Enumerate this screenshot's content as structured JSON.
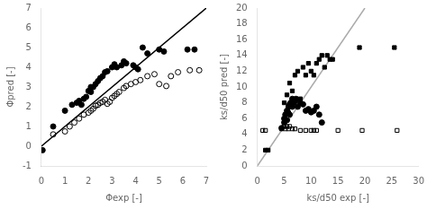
{
  "chart_data": [
    {
      "type": "scatter",
      "xlabel": "Φexp [-]",
      "ylabel": "Φpred [-]",
      "xlim": [
        0,
        7
      ],
      "ylim": [
        -1,
        7
      ],
      "xticks": [
        0,
        1,
        2,
        3,
        4,
        5,
        6,
        7
      ],
      "yticks": [
        -1,
        0,
        1,
        2,
        3,
        4,
        5,
        6,
        7
      ],
      "grid": false,
      "series": [
        {
          "type": "line",
          "color": "#000000",
          "x": [
            0,
            7
          ],
          "values": [
            0,
            7
          ]
        },
        {
          "type": "scatter",
          "marker": "circle",
          "color": "#000000",
          "x": [
            0.05,
            0.5,
            1.0,
            1.3,
            1.5,
            1.6,
            1.7,
            1.8,
            1.9,
            2.0,
            2.1,
            2.1,
            2.2,
            2.3,
            2.4,
            2.5,
            2.6,
            2.7,
            2.8,
            3.0,
            3.1,
            3.2,
            3.4,
            3.5,
            3.6,
            3.9,
            4.0,
            4.1,
            4.3,
            4.5,
            5.0,
            5.2,
            6.2,
            6.5
          ],
          "values": [
            -0.2,
            1.0,
            1.8,
            2.1,
            2.2,
            2.3,
            2.1,
            2.4,
            2.5,
            2.8,
            3.0,
            2.75,
            3.0,
            3.15,
            3.3,
            3.45,
            3.55,
            3.75,
            3.8,
            4.0,
            4.15,
            4.0,
            4.1,
            4.3,
            4.2,
            4.1,
            4.0,
            3.9,
            5.0,
            4.7,
            4.9,
            4.8,
            4.9,
            4.9
          ]
        },
        {
          "type": "scatter",
          "marker": "open_circle",
          "color": "#000000",
          "x": [
            0.5,
            1.0,
            1.2,
            1.4,
            1.6,
            1.8,
            2.0,
            2.1,
            2.2,
            2.3,
            2.4,
            2.5,
            2.6,
            2.7,
            2.8,
            2.9,
            3.0,
            3.1,
            3.2,
            3.3,
            3.5,
            3.6,
            3.8,
            4.0,
            4.2,
            4.5,
            4.8,
            5.0,
            5.3,
            5.5,
            5.8,
            6.3,
            6.7
          ],
          "values": [
            0.6,
            0.75,
            1.0,
            1.2,
            1.4,
            1.6,
            1.7,
            1.8,
            1.9,
            2.05,
            2.1,
            2.2,
            2.25,
            2.35,
            2.15,
            2.25,
            2.45,
            2.55,
            2.65,
            2.75,
            2.95,
            3.05,
            3.15,
            3.25,
            3.35,
            3.55,
            3.65,
            3.15,
            3.05,
            3.55,
            3.75,
            3.85,
            3.85
          ]
        }
      ]
    },
    {
      "type": "scatter",
      "xlabel": "ks/d50 exp [-]",
      "ylabel": "ks/d50 pred [-]",
      "xlim": [
        0,
        30
      ],
      "ylim": [
        0,
        20
      ],
      "xticks": [
        0,
        5,
        10,
        15,
        20,
        25,
        30
      ],
      "yticks": [
        0,
        2,
        4,
        6,
        8,
        10,
        12,
        14,
        16,
        18,
        20
      ],
      "grid": false,
      "series": [
        {
          "type": "line",
          "color": "#aaaaaa",
          "x": [
            0,
            20
          ],
          "values": [
            0,
            20
          ]
        },
        {
          "type": "scatter",
          "marker": "square",
          "color": "#000000",
          "x": [
            1.5,
            2.0,
            5.0,
            5.5,
            6.0,
            6.5,
            7.0,
            7.5,
            8.0,
            8.5,
            9.0,
            9.5,
            10.0,
            10.5,
            11.0,
            11.5,
            12.0,
            12.5,
            13.0,
            13.5,
            14.0,
            19.0,
            25.5
          ],
          "values": [
            2.0,
            2.0,
            8.0,
            9.0,
            10.5,
            9.5,
            11.5,
            12.0,
            8.5,
            12.5,
            11.5,
            13.0,
            12.0,
            11.5,
            13.0,
            13.5,
            14.0,
            12.5,
            14.0,
            13.5,
            13.5,
            15.0,
            15.0
          ]
        },
        {
          "type": "scatter",
          "marker": "circle",
          "color": "#000000",
          "x": [
            4.5,
            5.0,
            5.0,
            5.2,
            5.5,
            5.5,
            5.7,
            5.8,
            6.0,
            6.0,
            6.2,
            6.5,
            6.5,
            6.8,
            7.0,
            7.2,
            7.5,
            8.0,
            8.5,
            9.0,
            9.5,
            10.0,
            10.5,
            11.0,
            11.5,
            12.0
          ],
          "values": [
            4.8,
            5.5,
            6.0,
            6.5,
            5.8,
            7.0,
            6.8,
            7.5,
            7.8,
            6.5,
            8.0,
            7.5,
            8.5,
            8.0,
            8.2,
            8.5,
            7.5,
            8.0,
            7.8,
            7.0,
            7.2,
            6.8,
            7.0,
            7.5,
            6.5,
            5.5
          ]
        },
        {
          "type": "scatter",
          "marker": "open_square",
          "color": "#000000",
          "x": [
            1.0,
            1.5,
            4.5,
            5.0,
            5.2,
            5.5,
            5.8,
            6.0,
            6.5,
            7.0,
            8.0,
            9.0,
            10.0,
            10.5,
            11.0,
            15.0,
            19.5,
            26.0
          ],
          "values": [
            4.5,
            4.5,
            4.7,
            5.0,
            4.7,
            5.0,
            4.7,
            5.0,
            4.7,
            4.7,
            4.5,
            4.5,
            4.5,
            4.5,
            4.5,
            4.5,
            4.5,
            4.5
          ]
        }
      ]
    }
  ]
}
